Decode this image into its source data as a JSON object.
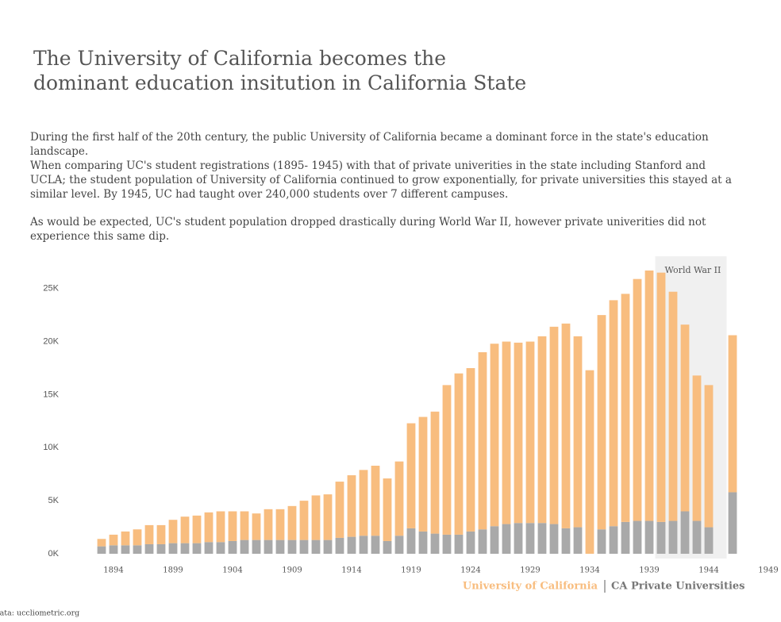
{
  "chart_data": {
    "type": "stacked-bar",
    "title": "The University of California becomes the dominant education insitution in California State",
    "paragraphs": [
      "During the first half of the 20th century, the public University of California became a dominant force in the state's education landscape.",
      "When comparing UC's student registrations (1895- 1945) with that of private univerities in the state including Stanford and UCLA; the student population of University of California continued to grow exponentially, for private universities this stayed at a similar level. By 1945, UC had taught over 240,000 students over 7 different campuses.",
      "As would be expected, UC's student population dropped drastically during World War II, however private univerities did not experience this same dip."
    ],
    "x": [
      1893,
      1894,
      1895,
      1896,
      1897,
      1898,
      1899,
      1900,
      1901,
      1902,
      1903,
      1904,
      1905,
      1906,
      1907,
      1908,
      1909,
      1910,
      1911,
      1912,
      1913,
      1914,
      1915,
      1916,
      1917,
      1918,
      1919,
      1920,
      1921,
      1922,
      1923,
      1924,
      1925,
      1926,
      1927,
      1928,
      1929,
      1930,
      1931,
      1932,
      1933,
      1934,
      1935,
      1936,
      1937,
      1938,
      1939,
      1940,
      1941,
      1942,
      1943,
      1944,
      1945,
      1946
    ],
    "series": [
      {
        "name": "CA Private Universities",
        "color": "#a9a9a9",
        "values": [
          700,
          800,
          800,
          800,
          900,
          900,
          1000,
          1000,
          1000,
          1100,
          1100,
          1200,
          1300,
          1300,
          1300,
          1300,
          1300,
          1300,
          1300,
          1300,
          1500,
          1600,
          1700,
          1700,
          1200,
          1700,
          2400,
          2100,
          1900,
          1800,
          1800,
          2100,
          2300,
          2600,
          2800,
          2900,
          2900,
          2900,
          2800,
          2400,
          2500,
          null,
          2300,
          2600,
          3000,
          3100,
          3100,
          3000,
          3100,
          4000,
          3100,
          2500,
          null,
          5800
        ]
      },
      {
        "name": "University of California",
        "color": "#f8bd7f",
        "values": [
          700,
          1000,
          1300,
          1500,
          1800,
          1800,
          2200,
          2500,
          2600,
          2800,
          2900,
          2800,
          2700,
          2500,
          2900,
          2900,
          3200,
          3700,
          4200,
          4300,
          5300,
          5800,
          6200,
          6600,
          5900,
          7000,
          9900,
          10800,
          11500,
          14100,
          15200,
          15400,
          16700,
          17200,
          17200,
          17000,
          17100,
          17600,
          18600,
          19300,
          18000,
          17300,
          20200,
          21300,
          21500,
          22800,
          23600,
          23500,
          21600,
          17600,
          13700,
          13400,
          null,
          14800
        ]
      }
    ],
    "xlim": [
      1892,
      1950
    ],
    "xticks": [
      1894,
      1899,
      1904,
      1909,
      1914,
      1919,
      1924,
      1929,
      1934,
      1939,
      1944,
      1949
    ],
    "ylim": [
      0,
      25800
    ],
    "yticks": [
      {
        "value": 0,
        "label": "0K"
      },
      {
        "value": 5000,
        "label": "5K"
      },
      {
        "value": 10000,
        "label": "10K"
      },
      {
        "value": 15000,
        "label": "15K"
      },
      {
        "value": 20000,
        "label": "20K"
      },
      {
        "value": 25000,
        "label": "25K"
      }
    ],
    "highlight": {
      "label": "World War II",
      "x": [
        1939.5,
        1945.5
      ],
      "color": "#f0f0f0"
    },
    "source": "Data: uccliometric.org"
  }
}
